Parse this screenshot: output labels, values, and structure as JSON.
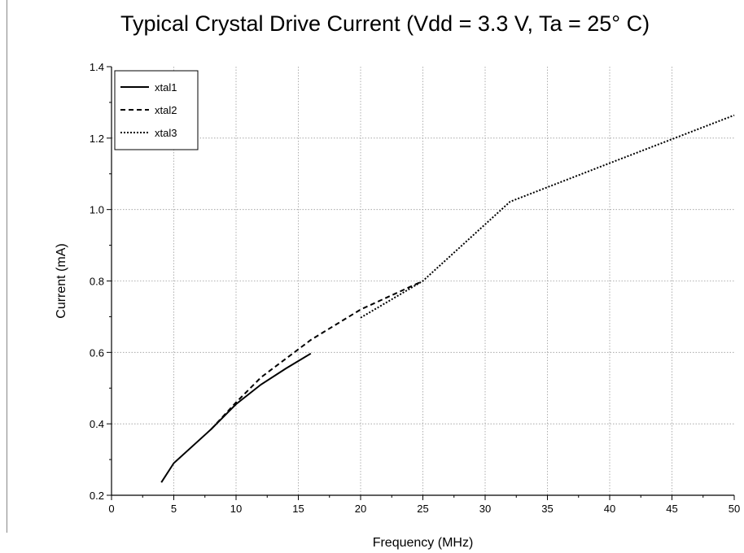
{
  "chart_data": {
    "type": "line",
    "title": "Typical Crystal Drive Current (Vdd = 3.3 V, Ta = 25° C)",
    "xlabel": "Frequency (MHz)",
    "ylabel": "Current (mA)",
    "xlim": [
      0,
      50
    ],
    "ylim": [
      0.2,
      1.4
    ],
    "xticks": [
      "0",
      "5",
      "10",
      "15",
      "20",
      "25",
      "30",
      "35",
      "40",
      "45",
      "50"
    ],
    "yticks": [
      "0.2",
      "0.4",
      "0.6",
      "0.8",
      "1.0",
      "1.2",
      "1.4"
    ],
    "grid": true,
    "legend_position": "top-left",
    "series": [
      {
        "name": "xtal1",
        "style": "solid",
        "points": [
          [
            4,
            0.236
          ],
          [
            5,
            0.29
          ],
          [
            8,
            0.385
          ],
          [
            10,
            0.455
          ],
          [
            12,
            0.51
          ],
          [
            14,
            0.555
          ],
          [
            16,
            0.597
          ]
        ]
      },
      {
        "name": "xtal2",
        "style": "dashed",
        "points": [
          [
            8,
            0.385
          ],
          [
            10,
            0.46
          ],
          [
            12,
            0.53
          ],
          [
            16,
            0.635
          ],
          [
            20,
            0.72
          ],
          [
            25,
            0.8
          ]
        ]
      },
      {
        "name": "xtal3",
        "style": "dotted",
        "points": [
          [
            20,
            0.697
          ],
          [
            25,
            0.8
          ],
          [
            32,
            1.022
          ],
          [
            40,
            1.13
          ],
          [
            50,
            1.264
          ]
        ]
      }
    ]
  }
}
